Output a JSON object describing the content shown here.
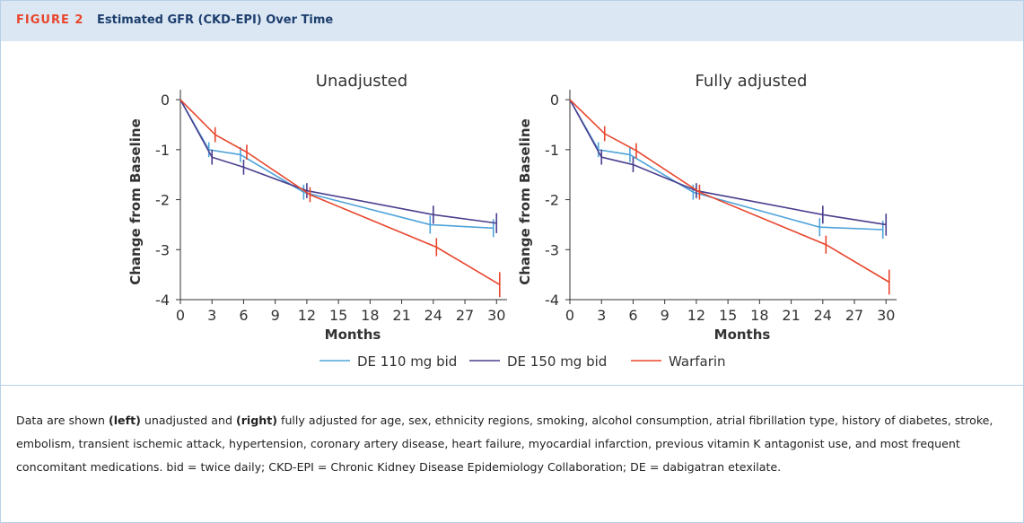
{
  "header": {
    "label": "FIGURE 2",
    "title": "Estimated GFR (CKD-EPI) Over Time"
  },
  "chart_data": [
    {
      "type": "line",
      "title": "Unadjusted",
      "x_label": "Months",
      "y_label": "Change from Baseline",
      "xlim": [
        0,
        31
      ],
      "xticks": [
        0,
        3,
        6,
        9,
        12,
        15,
        18,
        21,
        24,
        27,
        30
      ],
      "ylim": [
        -4,
        0.2
      ],
      "yticks": [
        0,
        -1,
        -2,
        -3,
        -4
      ],
      "series": [
        {
          "name": "DE 110 mg bid",
          "color": "#4fa3da",
          "x": [
            0,
            2.7,
            5.7,
            11.7,
            23.7,
            29.7
          ],
          "values": [
            0,
            -1.0,
            -1.1,
            -1.85,
            -2.5,
            -2.57
          ],
          "errors": [
            null,
            0.15,
            0.15,
            0.15,
            0.18,
            0.18
          ]
        },
        {
          "name": "DE 150 mg bid",
          "color": "#4a3f8e",
          "x": [
            0,
            3,
            6,
            12,
            24,
            30
          ],
          "values": [
            0,
            -1.15,
            -1.35,
            -1.82,
            -2.3,
            -2.47
          ],
          "errors": [
            null,
            0.15,
            0.15,
            0.15,
            0.18,
            0.2
          ]
        },
        {
          "name": "Warfarin",
          "color": "#e8452c",
          "x": [
            0,
            3.3,
            6.3,
            12.3,
            24.3,
            30.3
          ],
          "values": [
            0,
            -0.7,
            -1.05,
            -1.9,
            -2.95,
            -3.7
          ],
          "errors": [
            null,
            0.15,
            0.15,
            0.15,
            0.18,
            0.25
          ]
        }
      ]
    },
    {
      "type": "line",
      "title": "Fully adjusted",
      "x_label": "Months",
      "y_label": "Change from Baseline",
      "xlim": [
        0,
        31
      ],
      "xticks": [
        0,
        3,
        6,
        9,
        12,
        15,
        18,
        21,
        24,
        27,
        30
      ],
      "ylim": [
        -4,
        0.2
      ],
      "yticks": [
        0,
        -1,
        -2,
        -3,
        -4
      ],
      "series": [
        {
          "name": "DE 110 mg bid",
          "color": "#4fa3da",
          "x": [
            0,
            2.7,
            5.7,
            11.7,
            23.7,
            29.7
          ],
          "values": [
            0,
            -1.0,
            -1.1,
            -1.85,
            -2.55,
            -2.6
          ],
          "errors": [
            null,
            0.15,
            0.15,
            0.15,
            0.18,
            0.18
          ]
        },
        {
          "name": "DE 150 mg bid",
          "color": "#4a3f8e",
          "x": [
            0,
            3,
            6,
            12,
            24,
            30
          ],
          "values": [
            0,
            -1.15,
            -1.3,
            -1.82,
            -2.3,
            -2.5
          ],
          "errors": [
            null,
            0.15,
            0.15,
            0.15,
            0.18,
            0.22
          ]
        },
        {
          "name": "Warfarin",
          "color": "#e8452c",
          "x": [
            0,
            3.3,
            6.3,
            12.3,
            24.3,
            30.3
          ],
          "values": [
            0,
            -0.68,
            -1.02,
            -1.85,
            -2.9,
            -3.65
          ],
          "errors": [
            null,
            0.15,
            0.15,
            0.15,
            0.18,
            0.25
          ]
        }
      ]
    }
  ],
  "caption": [
    "Data are shown ",
    "(left)",
    " unadjusted and ",
    "(right)",
    " fully adjusted for age, sex, ethnicity regions, smoking, alcohol consumption, atrial fibrillation type, history of diabetes, stroke, embolism, transient ischemic attack, hypertension, coronary artery disease, heart failure, myocardial infarction, previous vitamin K antagonist use, and most frequent concomitant medications. bid = twice daily; CKD-EPI = Chronic Kidney Disease Epidemiology Collaboration; DE = dabigatran etexilate."
  ]
}
